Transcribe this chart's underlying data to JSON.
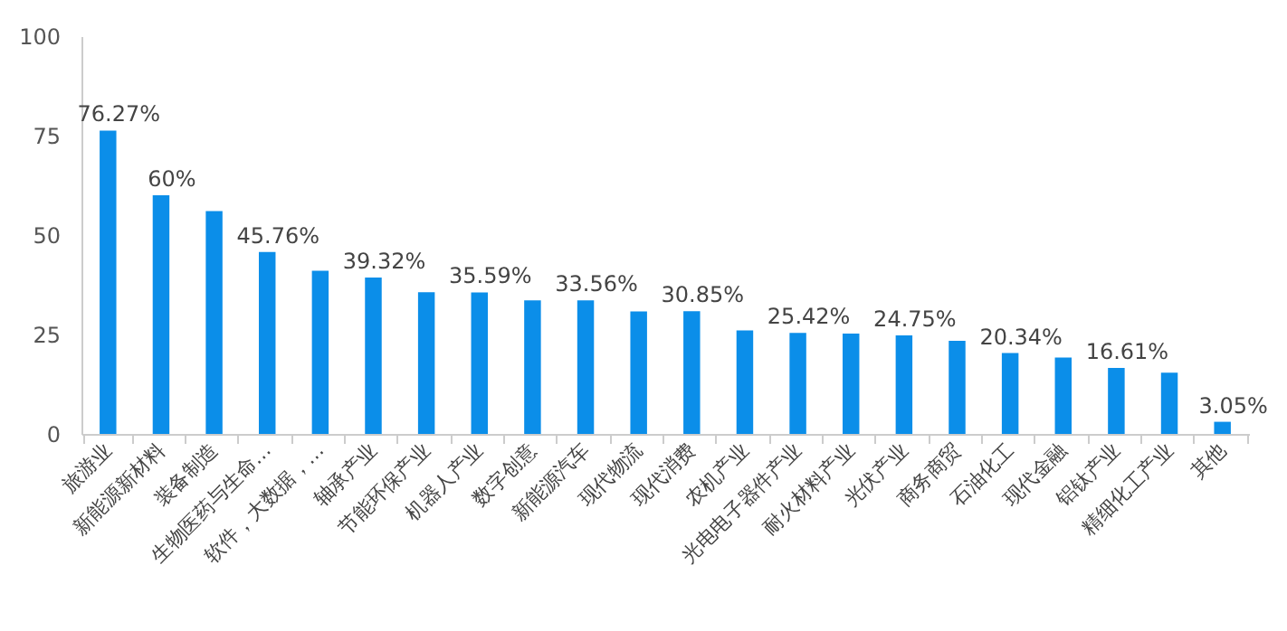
{
  "chart_data": {
    "type": "bar",
    "categories": [
      "旅游业",
      "新能源新材料",
      "装备制造",
      "生物医药与生命…",
      "软件，大数据，…",
      "轴承产业",
      "节能环保产业",
      "机器人产业",
      "数字创意",
      "新能源汽车",
      "现代物流",
      "现代消费",
      "农机产业",
      "光电电子器件产业",
      "耐火材料产业",
      "光伏产业",
      "商务商贸",
      "石油化工",
      "现代金融",
      "铝钛产业",
      "精细化工产业",
      "其他"
    ],
    "values": [
      76.27,
      60,
      56,
      45.76,
      41,
      39.32,
      35.6,
      35.59,
      33.6,
      33.56,
      30.8,
      30.85,
      26,
      25.42,
      25.2,
      24.75,
      23.4,
      20.34,
      19.2,
      16.61,
      15.4,
      3.05
    ],
    "value_labels": [
      "76.27%",
      "60%",
      null,
      "45.76%",
      null,
      "39.32%",
      null,
      "35.59%",
      null,
      "33.56%",
      null,
      "30.85%",
      null,
      "25.42%",
      null,
      "24.75%",
      null,
      "20.34%",
      null,
      "16.61%",
      null,
      "3.05%"
    ],
    "color": "#0b8ee9",
    "ylim": [
      0,
      100
    ],
    "yticks": [
      0,
      25,
      50,
      75,
      100
    ],
    "grid": false
  }
}
